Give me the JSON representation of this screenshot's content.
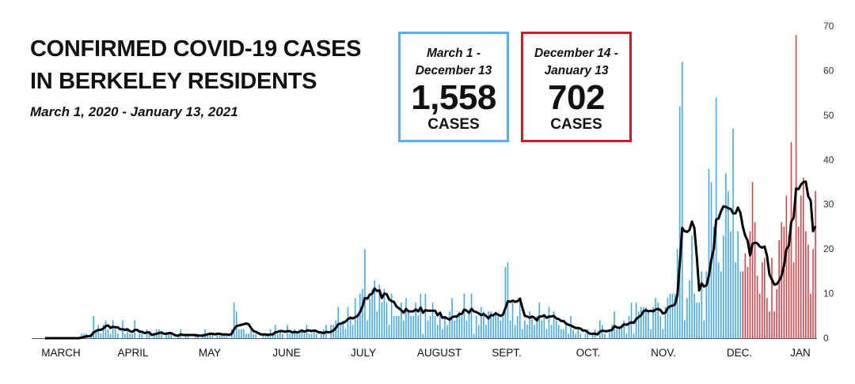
{
  "header": {
    "title_line1": "CONFIRMED COVID-19 CASES",
    "title_line2": "IN BERKELEY RESIDENTS",
    "subtitle": "March 1, 2020 - January 13, 2021"
  },
  "summary_boxes": [
    {
      "range_line1": "March 1 -",
      "range_line2": "December 13",
      "count": "1,558",
      "unit": "CASES",
      "color": "#5aaef0"
    },
    {
      "range_line1": "December 14 -",
      "range_line2": "January 13",
      "count": "702",
      "unit": "CASES",
      "color": "#c8202a"
    }
  ],
  "chart_data": {
    "type": "bar",
    "title": "CONFIRMED COVID-19 CASES IN BERKELEY RESIDENTS",
    "start_date": "2020-03-01",
    "end_date": "2021-01-13",
    "split_date": "2020-12-14",
    "ylim": [
      0,
      70
    ],
    "y_ticks": [
      0,
      10,
      20,
      30,
      40,
      50,
      60,
      70
    ],
    "y_axis_side": "right",
    "grid": false,
    "x_tick_labels": [
      "MARCH",
      "APRIL",
      "MAY",
      "JUNE",
      "JULY",
      "AUGUST",
      "SEPT.",
      "OCT.",
      "NOV.",
      "DEC.",
      "JAN"
    ],
    "series": [
      {
        "period": "March 1 - December 13",
        "color": "#45aaf2",
        "values": [
          0,
          0,
          0,
          0,
          0,
          0,
          0,
          0,
          0,
          0,
          0,
          0,
          0,
          0,
          0,
          1,
          1,
          1,
          0,
          1,
          5,
          2,
          3,
          1,
          3,
          4,
          2,
          1,
          4,
          2,
          1,
          0,
          4,
          1,
          2,
          1,
          1,
          4,
          0,
          1,
          1,
          0,
          2,
          1,
          0,
          1,
          2,
          2,
          1,
          0,
          1,
          1,
          1,
          0,
          0,
          1,
          2,
          0,
          1,
          1,
          0,
          0,
          1,
          1,
          0,
          1,
          2,
          1,
          1,
          1,
          0,
          1,
          1,
          1,
          1,
          1,
          0,
          2,
          8,
          6,
          2,
          2,
          2,
          1,
          1,
          2,
          1,
          1,
          0,
          0,
          1,
          1,
          1,
          2,
          1,
          3,
          1,
          2,
          1,
          0,
          3,
          1,
          1,
          2,
          1,
          2,
          2,
          1,
          3,
          1,
          1,
          2,
          1,
          0,
          1,
          2,
          3,
          0,
          3,
          3,
          4,
          7,
          3,
          4,
          2,
          7,
          5,
          3,
          9,
          5,
          10,
          11,
          20,
          4,
          9,
          11,
          13,
          6,
          12,
          8,
          11,
          8,
          3,
          10,
          5,
          5,
          5,
          8,
          4,
          9,
          6,
          5,
          5,
          8,
          5,
          10,
          1,
          10,
          4,
          5,
          8,
          5,
          3,
          5,
          2,
          5,
          3,
          6,
          9,
          4,
          5,
          6,
          5,
          10,
          4,
          6,
          10,
          1,
          5,
          3,
          7,
          6,
          3,
          6,
          6,
          5,
          6,
          5,
          4,
          5,
          16,
          17,
          4,
          8,
          3,
          5,
          9,
          2,
          4,
          3,
          6,
          5,
          3,
          5,
          8,
          4,
          5,
          2,
          7,
          3,
          6,
          4,
          3,
          2,
          2,
          3,
          1,
          5,
          2,
          1,
          2,
          1,
          0,
          1,
          2,
          0,
          1,
          2,
          0,
          4,
          3,
          1,
          0,
          2,
          3,
          6,
          2,
          2,
          3,
          4,
          1,
          5,
          8,
          1,
          8,
          6,
          7,
          7,
          7,
          6,
          2,
          7,
          9,
          8,
          5,
          2,
          7,
          9,
          10,
          10,
          10,
          20,
          52,
          62,
          4,
          9,
          13,
          23,
          10,
          8,
          8,
          15,
          4,
          15,
          38,
          35,
          25,
          54,
          17,
          15,
          23,
          37,
          33,
          24,
          47,
          17,
          24,
          15
        ]
      },
      {
        "period": "December 14 - January 13",
        "color": "#d9464b",
        "values": [
          15,
          19,
          16,
          24,
          35,
          26,
          14,
          10,
          17,
          18,
          9,
          6,
          18,
          6,
          11,
          22,
          26,
          25,
          32,
          23,
          44,
          17,
          68,
          25,
          32,
          36,
          24,
          21,
          10,
          20,
          33
        ]
      }
    ],
    "line": {
      "description_shown": false,
      "color": "#000000",
      "kind": "7-day average"
    }
  }
}
